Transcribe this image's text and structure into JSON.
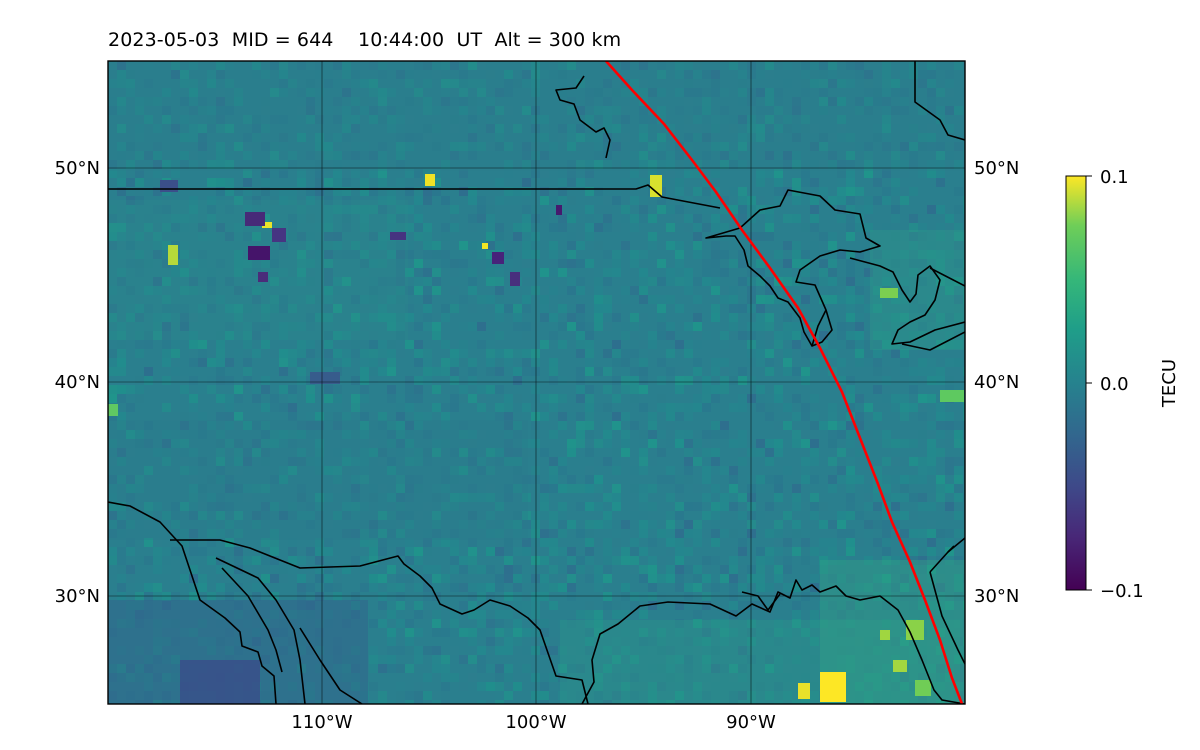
{
  "title": "2023-05-03  MID = 644    10:44:00  UT  Alt = 300 km",
  "map": {
    "lon_range": [
      -120,
      -80
    ],
    "lat_range": [
      25,
      55
    ],
    "lat_ticks": [
      {
        "value": 30,
        "label": "30°N"
      },
      {
        "value": 40,
        "label": "40°N"
      },
      {
        "value": 50,
        "label": "50°N"
      }
    ],
    "lon_ticks": [
      {
        "value": -110,
        "label": "110°W"
      },
      {
        "value": -100,
        "label": "100°W"
      },
      {
        "value": -90,
        "label": "90°W"
      }
    ],
    "grid": true,
    "colors": {
      "base": "#2a7f8e",
      "coastline": "#000000",
      "track": "#ff0000"
    }
  },
  "colorbar": {
    "label": "TECU",
    "min": -0.1,
    "max": 0.1,
    "ticks": [
      {
        "value": 0.1,
        "label": "0.1"
      },
      {
        "value": 0.0,
        "label": "0.0"
      },
      {
        "value": -0.1,
        "label": "−0.1"
      }
    ],
    "colormap": "viridis"
  }
}
